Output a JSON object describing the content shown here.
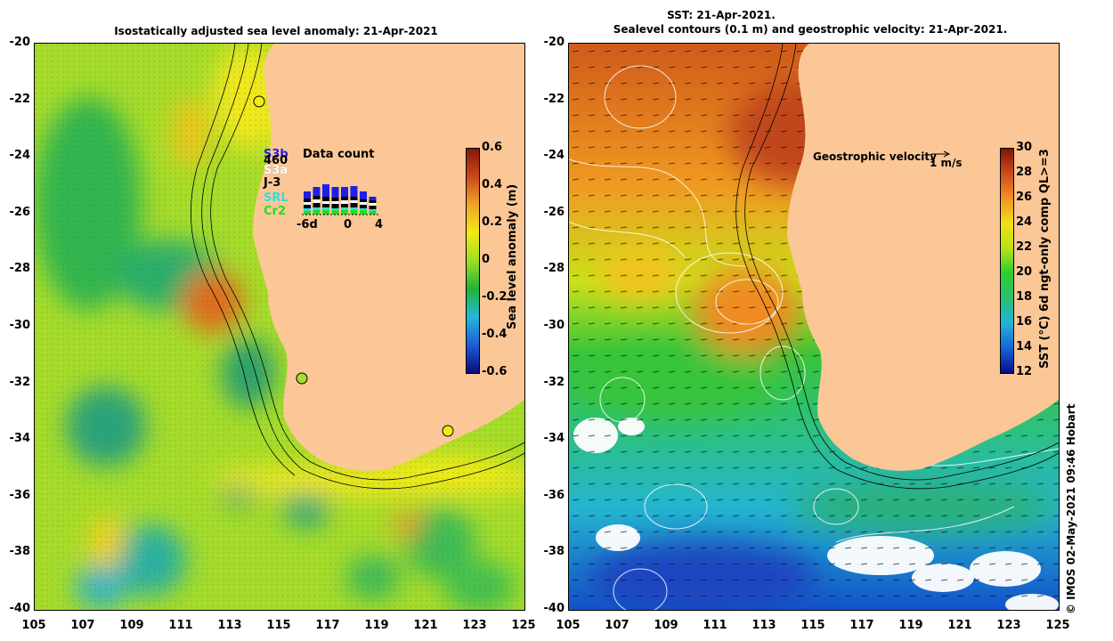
{
  "left_map": {
    "title": "Isostatically adjusted sea level anomaly: 21-Apr-2021",
    "y_ticks": [
      "-20",
      "-22",
      "-24",
      "-26",
      "-28",
      "-30",
      "-32",
      "-34",
      "-36",
      "-38",
      "-40"
    ],
    "x_ticks": [
      "105",
      "107",
      "109",
      "111",
      "113",
      "115",
      "117",
      "119",
      "121",
      "123",
      "125"
    ],
    "colorbar": {
      "label": "Sea level anomaly (m)",
      "ticks": [
        "0.6",
        "0.4",
        "0.2",
        "0",
        "-0.2",
        "-0.4",
        "-0.6"
      ],
      "range": [
        -0.6,
        0.6
      ]
    },
    "data_count": {
      "title": "Data count",
      "satellites": [
        {
          "name": "S3b",
          "color": "#1e1ee6"
        },
        {
          "name": "460",
          "color": "#000000"
        },
        {
          "name": "S3a",
          "color": "#ffffff"
        },
        {
          "name": "J-3",
          "color": "#000000"
        },
        {
          "name": "SRL",
          "color": "#33dddd"
        },
        {
          "name": "Cr2",
          "color": "#22dd22"
        }
      ],
      "axis_labels": [
        "-6d",
        "0",
        "4"
      ]
    }
  },
  "right_map": {
    "title_line1": "SST: 21-Apr-2021.",
    "title_line2": "Sealevel contours (0.1 m) and geostrophic velocity: 21-Apr-2021.",
    "y_ticks": [
      "-20",
      "-22",
      "-24",
      "-26",
      "-28",
      "-30",
      "-32",
      "-34",
      "-36",
      "-38",
      "-40"
    ],
    "x_ticks": [
      "105",
      "107",
      "109",
      "111",
      "113",
      "115",
      "117",
      "119",
      "121",
      "123",
      "125"
    ],
    "velocity_label": "Geostrophic velocity",
    "velocity_scale": "1 m/s",
    "colorbar": {
      "label": "SST (°C) 6d ngt-only comp QL>=3",
      "ticks": [
        "30",
        "28",
        "26",
        "24",
        "22",
        "20",
        "18",
        "16",
        "14",
        "12"
      ],
      "range": [
        12,
        30
      ]
    }
  },
  "credit": "© IMOS 02-May-2021 09:46 Hobart",
  "colors": {
    "land": "#fbc796",
    "sla_scale": [
      "#0b0b7a",
      "#1d5bd6",
      "#27b7d8",
      "#20b437",
      "#9fdd23",
      "#f2ea16",
      "#f0a526",
      "#c94a1b",
      "#861807"
    ],
    "sst_scale": [
      "#0a0a8a",
      "#1466d6",
      "#24b2d6",
      "#2bc070",
      "#2fcc2f",
      "#b8e21a",
      "#f2de17",
      "#f29223",
      "#cc4b1a",
      "#7f1705"
    ]
  }
}
